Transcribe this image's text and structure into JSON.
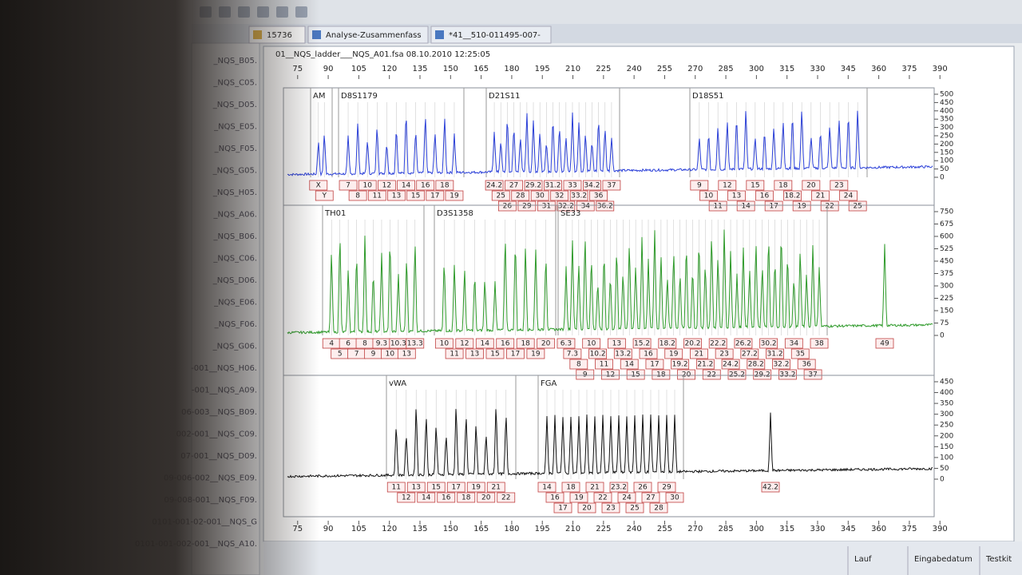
{
  "tabs": [
    "15736",
    "Analyse-Zusammenfass",
    "*41__510-011495-007-"
  ],
  "file_header": "01__NQS_ladder___NQS_A01.fsa 08.10.2010 12:25:05",
  "size_axis": {
    "lim": [
      70,
      395
    ],
    "ticks": [
      75,
      90,
      105,
      120,
      135,
      150,
      165,
      180,
      195,
      210,
      225,
      240,
      255,
      270,
      285,
      300,
      315,
      330,
      345,
      360,
      375,
      390
    ]
  },
  "sample_list": [
    "_NQS_B05.",
    "_NQS_C05.",
    "_NQS_D05.",
    "_NQS_E05.",
    "_NQS_F05.",
    "_NQS_G05.",
    "_NQS_H05.",
    "_NQS_A06.",
    "_NQS_B06.",
    "_NQS_C06.",
    "_NQS_D06.",
    "_NQS_E06.",
    "_NQS_F06.",
    "_NQS_G06.",
    "-001__NQS_H06.",
    "-001__NQS_A09.",
    "06-003__NQS_B09.",
    "002-001__NQS_C09.",
    "07-001__NQS_D09.",
    "09-006-002__NQS_E09.",
    "09-008-001__NQS_F09.",
    "0101-001-02-001__NQS_G",
    "0101-001-002-001__NQS_A10."
  ],
  "channels": [
    {
      "color": "#2a3fd8",
      "ylim": [
        0,
        500
      ],
      "yticks": [
        0,
        50,
        100,
        150,
        200,
        250,
        300,
        350,
        400,
        450,
        500
      ],
      "markers": [
        {
          "name": "AM",
          "alleles": [
            "X",
            "Y"
          ]
        },
        {
          "name": "D8S1179",
          "alleles": [
            "7",
            "8",
            "10",
            "11",
            "12",
            "13",
            "14",
            "15",
            "16",
            "17",
            "18",
            "19"
          ]
        },
        {
          "name": "D21S11",
          "alleles": [
            "24.2",
            "25",
            "26",
            "27",
            "28",
            "29",
            "29.2",
            "30",
            "31",
            "31.2",
            "32",
            "32.2",
            "33",
            "33.2",
            "34",
            "34.2",
            "36",
            "36.2",
            "37"
          ]
        },
        {
          "name": "D18S51",
          "alleles": [
            "9",
            "10",
            "11",
            "12",
            "13",
            "14",
            "15",
            "16",
            "17",
            "18",
            "18.2",
            "19",
            "20",
            "21",
            "22",
            "23",
            "24",
            "25"
          ]
        }
      ],
      "extra_labels": []
    },
    {
      "color": "#2e9a2a",
      "ylim": [
        0,
        750
      ],
      "yticks": [
        0,
        75,
        150,
        225,
        300,
        375,
        450,
        525,
        600,
        675,
        750
      ],
      "markers": [
        {
          "name": "TH01",
          "alleles": [
            "4",
            "5",
            "6",
            "7",
            "8",
            "9",
            "9.3",
            "10",
            "10.3",
            "13",
            "13.3"
          ]
        },
        {
          "name": "D3S1358",
          "alleles": [
            "10",
            "11",
            "12",
            "13",
            "14",
            "15",
            "16",
            "17",
            "18",
            "19",
            "20"
          ]
        },
        {
          "name": "SE33",
          "alleles": [
            "6.3",
            "7.3",
            "8",
            "9",
            "10",
            "10.2",
            "11",
            "12",
            "13",
            "13.2",
            "14",
            "15",
            "15.2",
            "16",
            "17",
            "18",
            "18.2",
            "19",
            "19.2",
            "20",
            "20.2",
            "21",
            "21.2",
            "22",
            "22.2",
            "23",
            "24.2",
            "25.2",
            "26.2",
            "27.2",
            "28.2",
            "29.2",
            "30.2",
            "31.2",
            "32.2",
            "33.2",
            "34",
            "35",
            "36",
            "37",
            "38"
          ]
        }
      ],
      "extra_labels": [
        "49"
      ]
    },
    {
      "color": "#111111",
      "ylim": [
        0,
        450
      ],
      "yticks": [
        0,
        50,
        100,
        150,
        200,
        250,
        300,
        350,
        400,
        450
      ],
      "markers": [
        {
          "name": "vWA",
          "alleles": [
            "11",
            "12",
            "13",
            "14",
            "15",
            "16",
            "17",
            "18",
            "19",
            "20",
            "21",
            "22"
          ]
        },
        {
          "name": "FGA",
          "alleles": [
            "14",
            "16",
            "17",
            "18",
            "19",
            "20",
            "21",
            "22",
            "23",
            "23.2",
            "24",
            "25",
            "26",
            "27",
            "28",
            "29",
            "30"
          ]
        }
      ],
      "extra_labels": [
        "42.2"
      ]
    }
  ],
  "status_columns": [
    "Lauf",
    "Eingabedatum",
    "Testkit"
  ]
}
